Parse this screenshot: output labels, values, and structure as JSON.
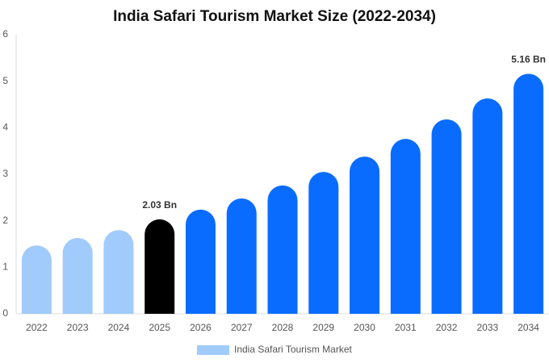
{
  "chart_data": {
    "type": "bar",
    "title": "India Safari Tourism Market Size (2022-2034)",
    "categories": [
      "2022",
      "2023",
      "2024",
      "2025",
      "2026",
      "2027",
      "2028",
      "2029",
      "2030",
      "2031",
      "2032",
      "2033",
      "2034"
    ],
    "series": [
      {
        "name": "India Safari Tourism Market",
        "color": "#a0cbfb",
        "colors": [
          "#a0cbfb",
          "#a0cbfb",
          "#a0cbfb",
          "#000000",
          "#0a6cff",
          "#0a6cff",
          "#0a6cff",
          "#0a6cff",
          "#0a6cff",
          "#0a6cff",
          "#0a6cff",
          "#0a6cff",
          "#0a6cff"
        ],
        "values": [
          1.47,
          1.63,
          1.8,
          2.03,
          2.24,
          2.48,
          2.76,
          3.05,
          3.38,
          3.76,
          4.18,
          4.63,
          5.16
        ],
        "value_labels": [
          null,
          null,
          null,
          "2.03 Bn",
          null,
          null,
          null,
          null,
          null,
          null,
          null,
          null,
          "5.16 Bn"
        ]
      }
    ],
    "ylim": [
      0,
      6
    ],
    "yticks": [
      0,
      1,
      2,
      3,
      4,
      5,
      6
    ],
    "grid": false
  }
}
